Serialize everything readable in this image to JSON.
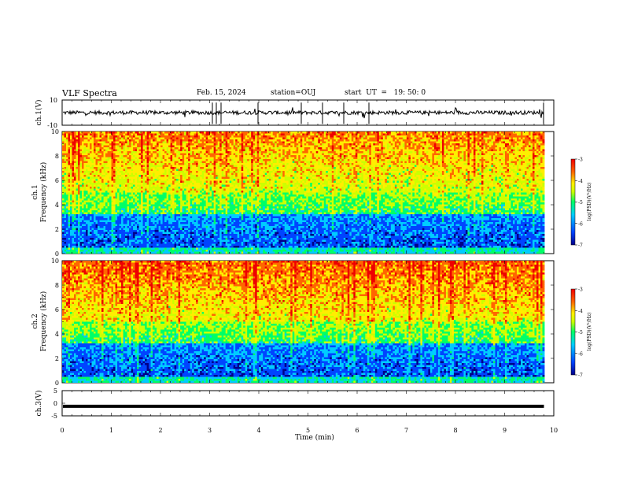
{
  "header": {
    "title": "VLF Spectra",
    "date": "Feb. 15, 2024",
    "station": "station=OUJ",
    "start": "start  UT  =   19: 50: 0"
  },
  "chart_data": [
    {
      "type": "line",
      "panel": "ch1-waveform",
      "ylabel": "ch.1(V)",
      "ylim": [
        -10,
        10
      ],
      "yticks": [
        "10",
        "-10"
      ],
      "xlim": [
        0,
        10
      ],
      "baseline": 0,
      "color": "#000000"
    },
    {
      "type": "heatmap",
      "panel": "ch1-spectrogram",
      "ylabel_line1": "ch.1",
      "ylabel_line2": "Frequency  (kHz)",
      "ylim": [
        0,
        10
      ],
      "yticks": [
        "0",
        "2",
        "4",
        "6",
        "8",
        "10"
      ],
      "xlim": [
        0,
        10
      ],
      "data_end_x": 9.8,
      "colorbar": {
        "label": "log(PSD)(V²/Hz)",
        "range": [
          -7,
          -3
        ],
        "ticks": [
          "-3",
          "-4",
          "-5",
          "-6",
          "-7"
        ]
      }
    },
    {
      "type": "heatmap",
      "panel": "ch2-spectrogram",
      "ylabel_line1": "ch.2",
      "ylabel_line2": "Frequency  (kHz)",
      "ylim": [
        0,
        10
      ],
      "yticks": [
        "0",
        "2",
        "4",
        "6",
        "8",
        "10"
      ],
      "xlim": [
        0,
        10
      ],
      "data_end_x": 9.8,
      "colorbar": {
        "label": "log(PSD)(V²/Hz)",
        "range": [
          -7,
          -3
        ],
        "ticks": [
          "-3",
          "-4",
          "-5",
          "-6",
          "-7"
        ]
      }
    },
    {
      "type": "line",
      "panel": "ch3-waveform",
      "ylabel": "ch.3(V)",
      "ylim": [
        -5,
        5
      ],
      "yticks": [
        "5",
        "0",
        "-5"
      ],
      "xlim": [
        0,
        10
      ],
      "level": -1.2,
      "color": "#000000"
    }
  ],
  "xaxis": {
    "label": "Time  (min)",
    "ticks": [
      "0",
      "1",
      "2",
      "3",
      "4",
      "5",
      "6",
      "7",
      "8",
      "9",
      "10"
    ]
  },
  "palette": {
    "c1": "#000088",
    "c2": "#0044ff",
    "c3": "#00ccff",
    "c4": "#00ff66",
    "c5": "#ccff00",
    "c6": "#ffee00",
    "c7": "#ff6600",
    "c8": "#ee0000"
  }
}
